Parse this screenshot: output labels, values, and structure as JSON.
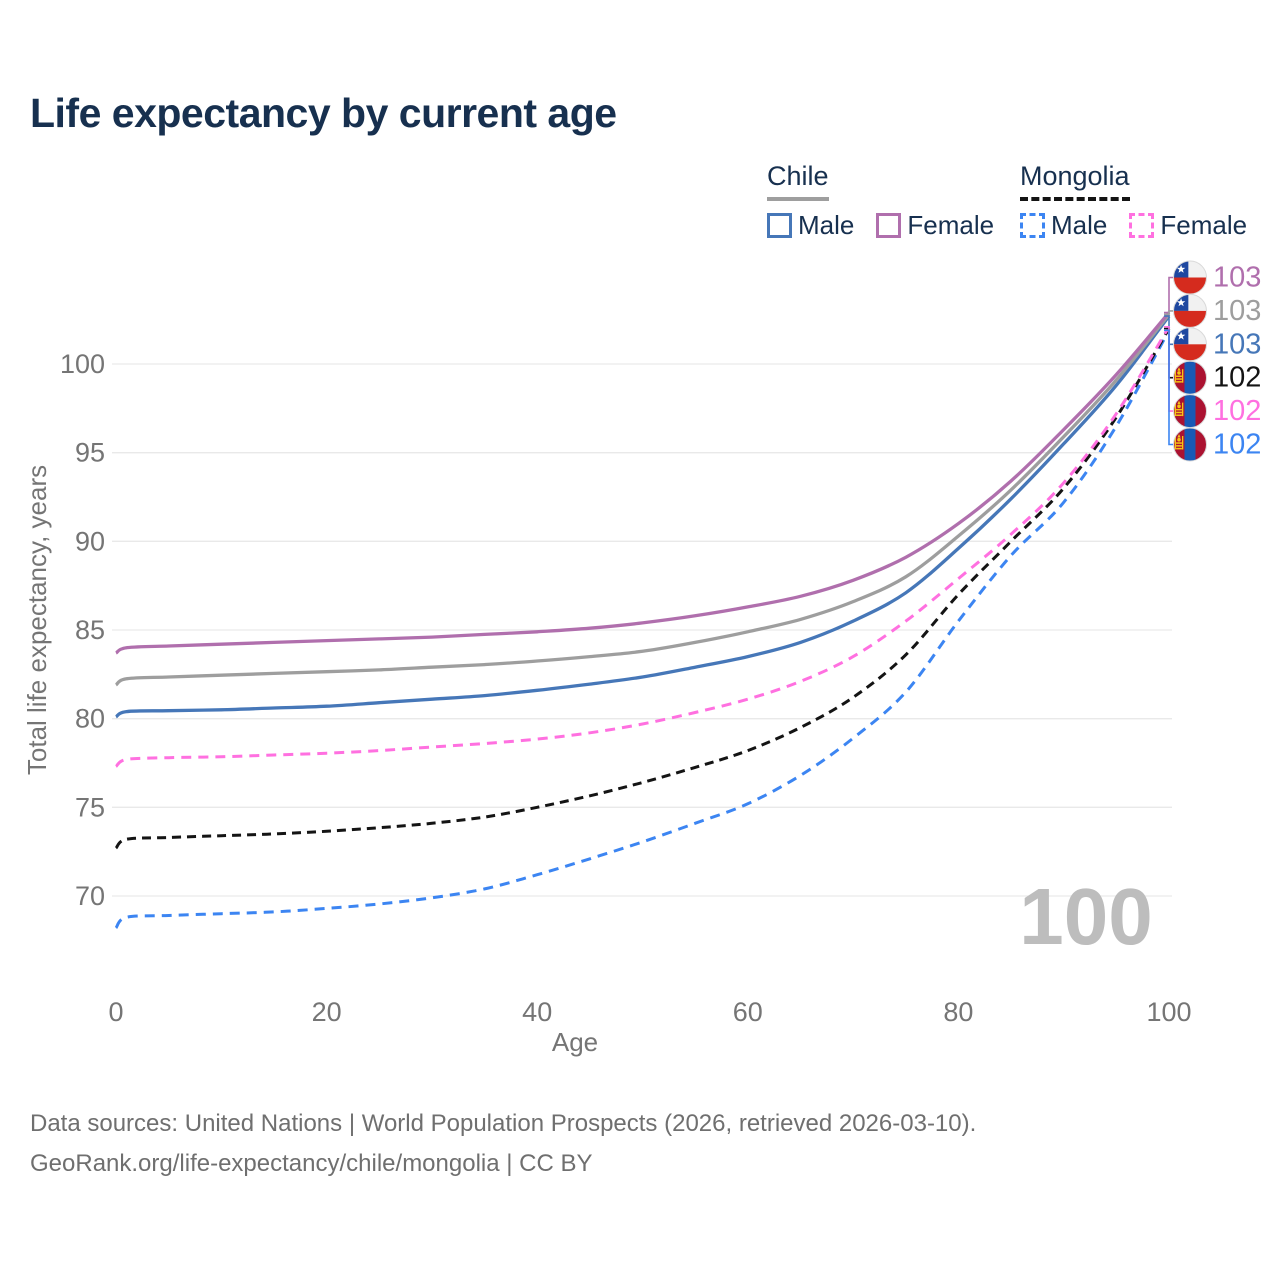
{
  "title": "Life expectancy by current age",
  "legend": {
    "chile": {
      "label": "Chile",
      "male": "Male",
      "female": "Female"
    },
    "mongolia": {
      "label": "Mongolia",
      "male": "Male",
      "female": "Female"
    }
  },
  "colors": {
    "chile_male": "#4677b8",
    "chile_female": "#b06fad",
    "chile_total": "#9e9e9e",
    "mongolia_male": "#3c85f2",
    "mongolia_female": "#ff70e0",
    "mongolia_total": "#141414",
    "title_text": "#17304f",
    "axis_text": "#757575",
    "grid": "#e9e9e9",
    "watermark": "#bdbdbd",
    "footer_text": "#6f6f6f",
    "flag_chile_blue": "#1e47a0",
    "flag_chile_red": "#d52b1e",
    "flag_chile_white": "#f1f1f1",
    "flag_mongolia_red": "#ab1231",
    "flag_mongolia_blue": "#1859b5",
    "flag_mongolia_yellow": "#f6c514"
  },
  "footer": {
    "line1": "Data sources: United Nations | World Population Prospects (2026, retrieved 2026-03-10).",
    "line2": "GeoRank.org/life-expectancy/chile/mongolia | CC BY"
  },
  "chart_data": {
    "type": "line",
    "title": "Life expectancy by current age",
    "xlabel": "Age",
    "ylabel": "Total life expectancy, years",
    "xlim": [
      0,
      100
    ],
    "ylim": [
      66.5,
      104
    ],
    "x_ticks": [
      0,
      20,
      40,
      60,
      80,
      100
    ],
    "y_ticks": [
      70,
      75,
      80,
      85,
      90,
      95,
      100
    ],
    "grid": "horizontal",
    "legend_position": "top-right",
    "age_indicator": "100",
    "ages": [
      0,
      1,
      5,
      10,
      15,
      20,
      25,
      30,
      35,
      40,
      45,
      50,
      55,
      60,
      65,
      70,
      75,
      80,
      85,
      90,
      95,
      100
    ],
    "series": [
      {
        "id": "mongolia_male",
        "name": "Mongolia Male",
        "country": "mongolia",
        "style": "dashed",
        "color_key": "mongolia_male",
        "values": [
          68.2,
          68.8,
          68.9,
          69.0,
          69.1,
          69.3,
          69.55,
          69.9,
          70.4,
          71.2,
          72.1,
          73.05,
          74.1,
          75.2,
          76.8,
          78.9,
          81.5,
          85.5,
          89.2,
          92.2,
          96.5,
          101.9
        ]
      },
      {
        "id": "mongolia_total",
        "name": "Mongolia Total",
        "country": "mongolia",
        "style": "dashed",
        "color_key": "mongolia_total",
        "values": [
          72.7,
          73.2,
          73.3,
          73.4,
          73.5,
          73.65,
          73.85,
          74.1,
          74.45,
          75.0,
          75.65,
          76.4,
          77.25,
          78.2,
          79.5,
          81.2,
          83.6,
          87.0,
          90.0,
          93.0,
          97.0,
          102.0
        ]
      },
      {
        "id": "mongolia_female",
        "name": "Mongolia Female",
        "country": "mongolia",
        "style": "dashed",
        "color_key": "mongolia_female",
        "values": [
          77.3,
          77.7,
          77.8,
          77.85,
          77.95,
          78.05,
          78.2,
          78.4,
          78.6,
          78.85,
          79.2,
          79.7,
          80.35,
          81.1,
          82.1,
          83.5,
          85.5,
          87.9,
          90.4,
          93.3,
          97.2,
          102.1
        ]
      },
      {
        "id": "chile_male",
        "name": "Chile Male",
        "country": "chile",
        "style": "solid",
        "color_key": "chile_male",
        "values": [
          80.1,
          80.4,
          80.45,
          80.5,
          80.6,
          80.7,
          80.9,
          81.1,
          81.3,
          81.6,
          81.95,
          82.35,
          82.9,
          83.5,
          84.3,
          85.5,
          87.1,
          89.6,
          92.4,
          95.5,
          98.8,
          102.7
        ]
      },
      {
        "id": "chile_total",
        "name": "Chile Total",
        "country": "chile",
        "style": "solid",
        "color_key": "chile_total",
        "values": [
          81.9,
          82.25,
          82.35,
          82.45,
          82.55,
          82.65,
          82.75,
          82.9,
          83.05,
          83.25,
          83.5,
          83.8,
          84.3,
          84.9,
          85.6,
          86.6,
          88.0,
          90.3,
          92.9,
          95.9,
          99.1,
          102.8
        ]
      },
      {
        "id": "chile_female",
        "name": "Chile Female",
        "country": "chile",
        "style": "solid",
        "color_key": "chile_female",
        "values": [
          83.7,
          84.0,
          84.1,
          84.2,
          84.3,
          84.4,
          84.5,
          84.6,
          84.75,
          84.9,
          85.1,
          85.4,
          85.8,
          86.3,
          86.9,
          87.8,
          89.1,
          91.0,
          93.4,
          96.3,
          99.4,
          102.9
        ]
      }
    ],
    "end_labels": [
      {
        "value": "103",
        "series": "chile_female",
        "country": "chile",
        "color_key": "chile_female"
      },
      {
        "value": "103",
        "series": "chile_total",
        "country": "chile",
        "color_key": "chile_total"
      },
      {
        "value": "103",
        "series": "chile_male",
        "country": "chile",
        "color_key": "chile_male"
      },
      {
        "value": "102",
        "series": "mongolia_total",
        "country": "mongolia",
        "color_key": "mongolia_total"
      },
      {
        "value": "102",
        "series": "mongolia_female",
        "country": "mongolia",
        "color_key": "mongolia_female"
      },
      {
        "value": "102",
        "series": "mongolia_male",
        "country": "mongolia",
        "color_key": "mongolia_male"
      }
    ]
  }
}
